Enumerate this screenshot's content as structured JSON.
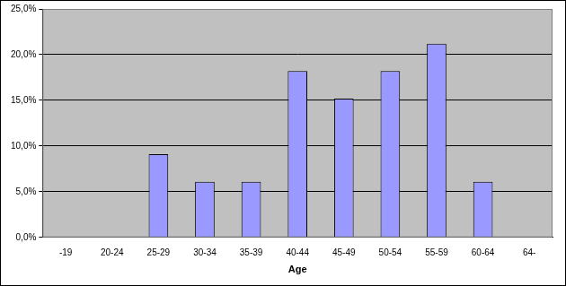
{
  "chart_data": {
    "type": "bar",
    "categories": [
      "-19",
      "20-24",
      "25-29",
      "30-34",
      "35-39",
      "40-44",
      "45-49",
      "50-54",
      "55-59",
      "60-64",
      "64-"
    ],
    "values": [
      0,
      0,
      9.1,
      6.1,
      6.1,
      18.2,
      15.2,
      18.2,
      21.2,
      6.1,
      0
    ],
    "color": "#9999ff",
    "xlabel": "Age",
    "ylim": [
      0,
      25
    ],
    "yticks": [
      {
        "value": 0,
        "label": "0,0%"
      },
      {
        "value": 5,
        "label": "5,0%"
      },
      {
        "value": 10,
        "label": "10,0%"
      },
      {
        "value": 15,
        "label": "15,0%"
      },
      {
        "value": 20,
        "label": "20,0%"
      },
      {
        "value": 25,
        "label": "25,0%"
      }
    ],
    "grid": true
  }
}
